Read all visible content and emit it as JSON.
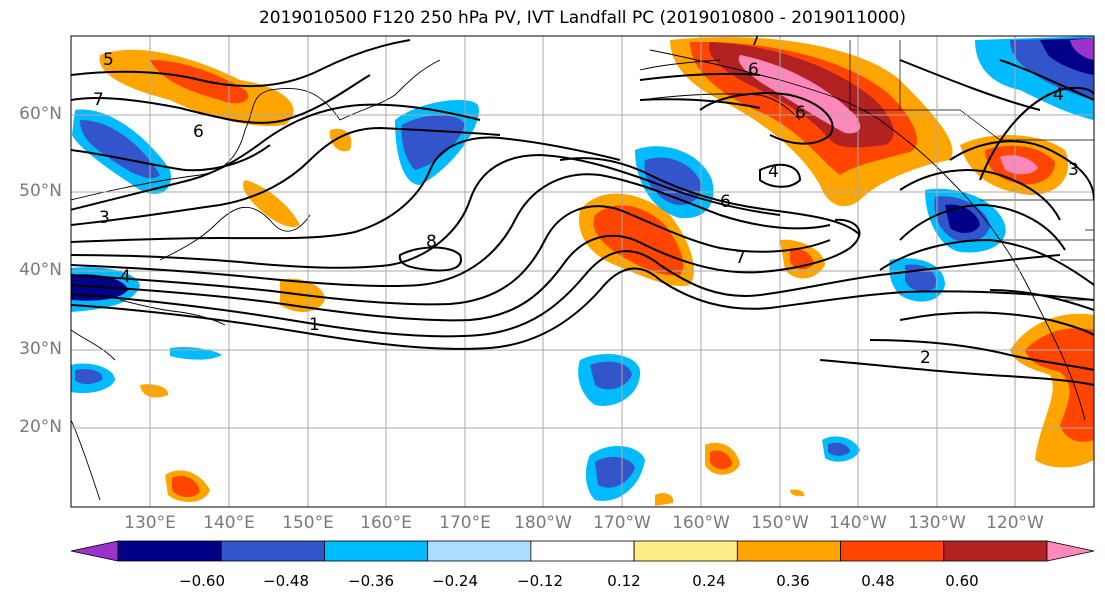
{
  "title": "2019010500 F120 250 hPa PV, IVT Landfall PC (2019010800 - 2019011000)",
  "lat_labels": [
    "60°N",
    "50°N",
    "40°N",
    "30°N",
    "20°N"
  ],
  "lon_labels": [
    "130°E",
    "140°E",
    "150°E",
    "160°E",
    "170°E",
    "180°W",
    "170°W",
    "160°W",
    "150°W",
    "140°W",
    "130°W",
    "120°W"
  ],
  "colorbar": {
    "ticks": [
      "−0.60",
      "−0.48",
      "−0.36",
      "−0.24",
      "−0.12",
      "0.12",
      "0.24",
      "0.36",
      "0.48",
      "0.60"
    ],
    "colors": [
      "#9933cc",
      "#000088",
      "#3355cc",
      "#00bbff",
      "#aaddff",
      "#ffffff",
      "#ffee88",
      "#ffa500",
      "#ff4500",
      "#b22222",
      "#ff88bb"
    ]
  },
  "contour_labels": [
    "5",
    "7",
    "6",
    "3",
    "4",
    "8",
    "1",
    "6",
    "7",
    "4",
    "6",
    "2",
    "3",
    "4",
    "7",
    "6"
  ]
}
